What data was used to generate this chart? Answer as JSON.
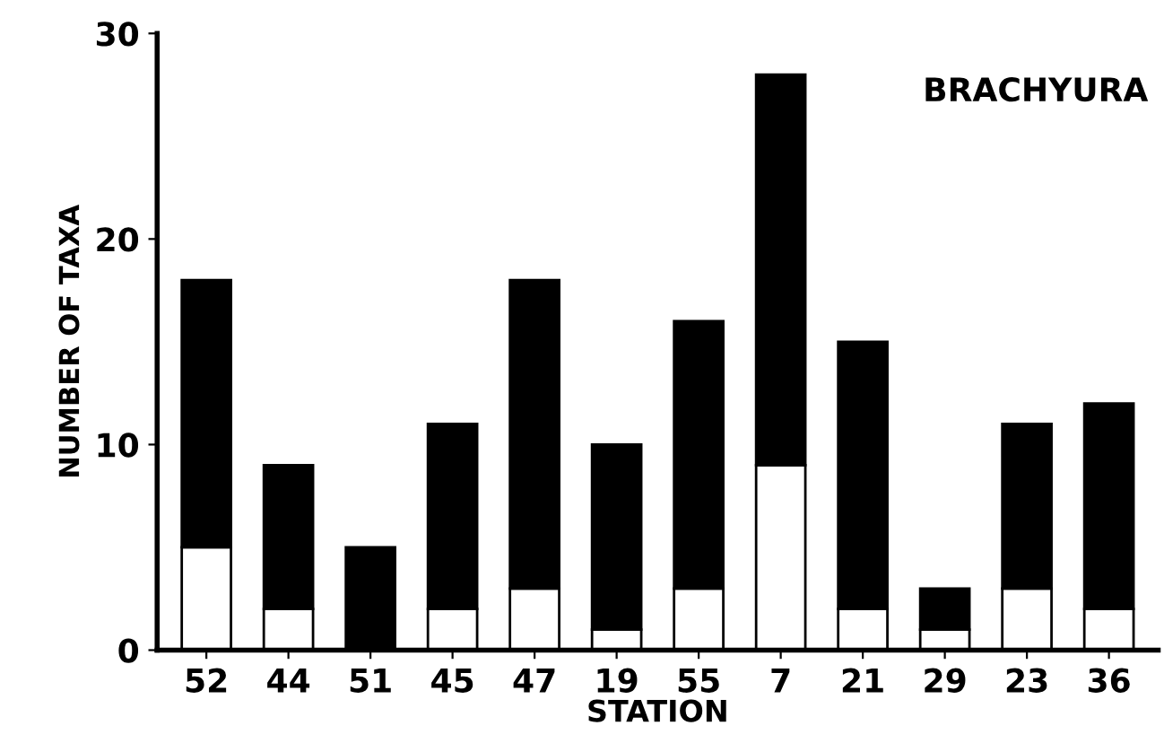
{
  "chart_data": {
    "type": "bar",
    "title": "BRACHYURA",
    "xlabel": "STATION",
    "ylabel": "NUMBER OF TAXA",
    "categories": [
      "52",
      "44",
      "51",
      "45",
      "47",
      "19",
      "55",
      "7",
      "21",
      "29",
      "23",
      "36"
    ],
    "stacked": true,
    "series": [
      {
        "color": "#ffffff",
        "values": [
          5,
          2,
          0,
          2,
          3,
          1,
          3,
          9,
          2,
          1,
          3,
          2
        ]
      },
      {
        "color": "#000000",
        "values": [
          13,
          7,
          5,
          9,
          15,
          9,
          13,
          19,
          13,
          2,
          8,
          10
        ]
      }
    ],
    "ylim": [
      0,
      30
    ],
    "yticks": [
      0,
      10,
      20,
      30
    ],
    "grid": false,
    "legend": false
  }
}
